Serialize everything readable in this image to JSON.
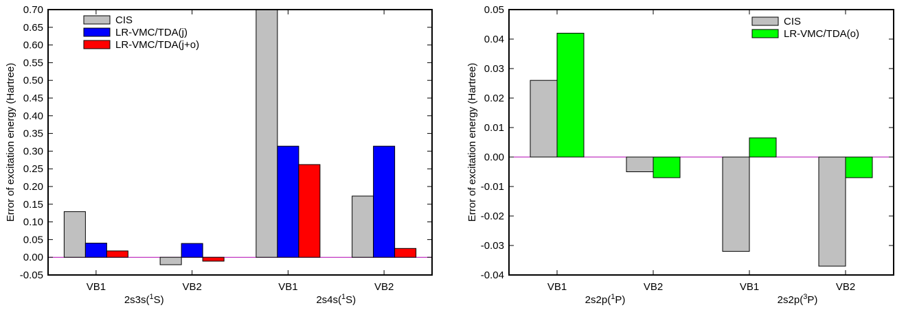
{
  "chart_data": [
    {
      "type": "bar",
      "ylabel": "Error of excitation energy (Hartree)",
      "ylim": [
        -0.05,
        0.7
      ],
      "yticks": [
        "-0.05",
        "0.00",
        "0.05",
        "0.10",
        "0.15",
        "0.20",
        "0.25",
        "0.30",
        "0.35",
        "0.40",
        "0.45",
        "0.50",
        "0.55",
        "0.60",
        "0.65",
        "0.70"
      ],
      "categories": [
        "VB1",
        "VB2",
        "VB1",
        "VB2"
      ],
      "groups": [
        {
          "label": "2s3s(",
          "sup": "1",
          "suffix": "S)"
        },
        {
          "label": "2s4s(",
          "sup": "1",
          "suffix": "S)"
        }
      ],
      "series": [
        {
          "name": "CIS",
          "color": "#c0c0c0",
          "values": [
            0.129,
            -0.021,
            0.7,
            0.173
          ]
        },
        {
          "name": "LR-VMC/TDA(j)",
          "color": "#0000ff",
          "values": [
            0.04,
            0.039,
            0.314,
            0.314
          ]
        },
        {
          "name": "LR-VMC/TDA(j+o)",
          "color": "#ff0000",
          "values": [
            0.018,
            -0.011,
            0.262,
            0.025
          ]
        }
      ],
      "legend_position": "top-left",
      "grid": false
    },
    {
      "type": "bar",
      "ylabel": "Error of excitation energy (Hartree)",
      "ylim": [
        -0.04,
        0.05
      ],
      "yticks": [
        "-0.04",
        "-0.03",
        "-0.02",
        "-0.01",
        "0.00",
        "0.01",
        "0.02",
        "0.03",
        "0.04",
        "0.05"
      ],
      "categories": [
        "VB1",
        "VB2",
        "VB1",
        "VB2"
      ],
      "groups": [
        {
          "label": "2s2p(",
          "sup": "1",
          "suffix": "P)"
        },
        {
          "label": "2s2p(",
          "sup": "3",
          "suffix": "P)"
        }
      ],
      "series": [
        {
          "name": "CIS",
          "color": "#c0c0c0",
          "values": [
            0.026,
            -0.005,
            -0.032,
            -0.037
          ]
        },
        {
          "name": "LR-VMC/TDA(o)",
          "color": "#00ff00",
          "values": [
            0.042,
            -0.007,
            0.0065,
            -0.007
          ]
        }
      ],
      "legend_position": "top-right",
      "grid": false
    }
  ]
}
